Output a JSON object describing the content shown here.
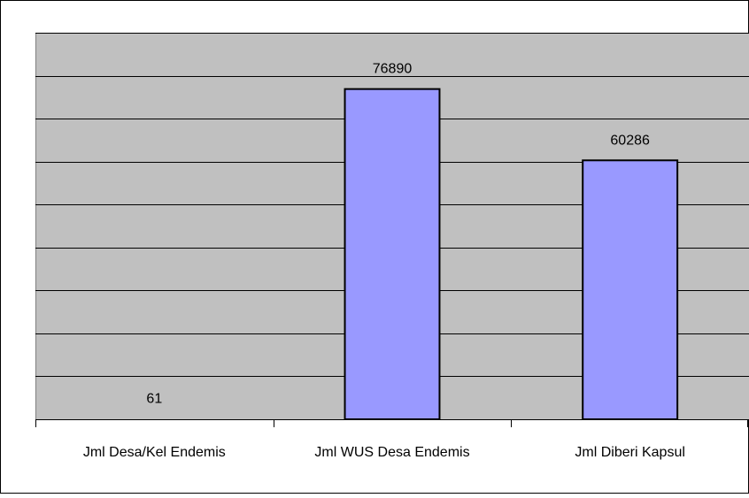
{
  "chart_data": {
    "type": "bar",
    "categories": [
      "Jml Desa/Kel Endemis",
      "Jml WUS Desa Endemis",
      "Jml Diberi Kapsul"
    ],
    "values": [
      61,
      76890,
      60286
    ],
    "data_labels": [
      "61",
      "76890",
      "60286"
    ],
    "ylim": [
      0,
      90000
    ],
    "grid": true,
    "colors": {
      "bar": "#9999FF",
      "plot_bg": "#C0C0C0",
      "gridline": "#000000"
    }
  }
}
